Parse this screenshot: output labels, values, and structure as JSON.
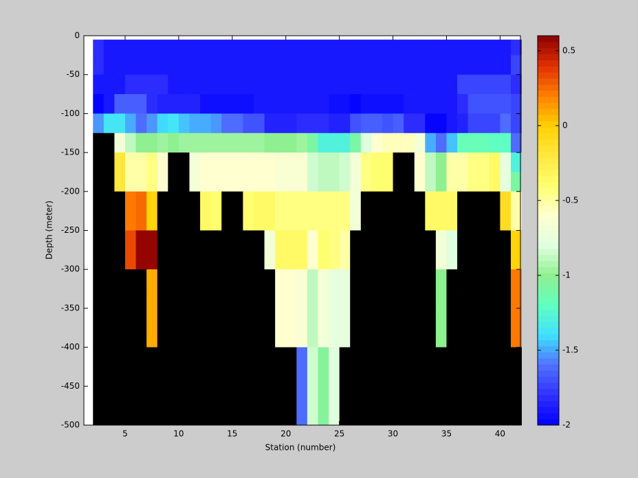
{
  "chart_data": {
    "type": "heatmap",
    "xlabel": "Station (number)",
    "ylabel": "Depth (meter)",
    "x": [
      2,
      3,
      4,
      5,
      6,
      7,
      8,
      9,
      10,
      11,
      12,
      13,
      14,
      15,
      16,
      17,
      18,
      19,
      20,
      21,
      22,
      23,
      24,
      25,
      26,
      27,
      28,
      29,
      30,
      31,
      32,
      33,
      34,
      35,
      36,
      37,
      38,
      39,
      40,
      41,
      42
    ],
    "y": [
      -5,
      -25,
      -50,
      -75,
      -100,
      -125,
      -150,
      -175,
      -200,
      -225,
      -250,
      -275,
      -300,
      -325,
      -350,
      -375,
      -400,
      -425,
      -450,
      -475,
      -500
    ],
    "values": [
      [
        -1.8,
        -1.9,
        -1.9,
        -1.9,
        -1.9,
        -1.9,
        -1.9,
        -1.9,
        -1.9,
        -1.9,
        -1.9,
        -1.9,
        -1.9,
        -1.9,
        -1.9,
        -1.9,
        -1.9,
        -1.9,
        -1.9,
        -1.9,
        -1.9,
        -1.9,
        -1.9,
        -1.9,
        -1.9,
        -1.9,
        -1.9,
        -1.9,
        -1.9,
        -1.9,
        -1.9,
        -1.9,
        -1.9,
        -1.9,
        -1.9,
        -1.9,
        -1.9,
        -1.9,
        -1.9,
        -1.8
      ],
      [
        -1.8,
        -1.9,
        -1.9,
        -1.9,
        -1.9,
        -1.9,
        -1.9,
        -1.9,
        -1.9,
        -1.9,
        -1.9,
        -1.9,
        -1.9,
        -1.9,
        -1.9,
        -1.9,
        -1.9,
        -1.9,
        -1.9,
        -1.9,
        -1.9,
        -1.9,
        -1.9,
        -1.9,
        -1.9,
        -1.9,
        -1.9,
        -1.9,
        -1.9,
        -1.9,
        -1.9,
        -1.9,
        -1.9,
        -1.9,
        -1.9,
        -1.9,
        -1.9,
        -1.9,
        -1.9,
        -1.75
      ],
      [
        -1.9,
        -1.9,
        -1.9,
        -1.8,
        -1.8,
        -1.8,
        -1.8,
        -1.9,
        -1.9,
        -1.9,
        -1.9,
        -1.9,
        -1.9,
        -1.9,
        -1.9,
        -1.9,
        -1.9,
        -1.9,
        -1.9,
        -1.9,
        -1.9,
        -1.9,
        -1.9,
        -1.9,
        -1.9,
        -1.9,
        -1.9,
        -1.9,
        -1.9,
        -1.9,
        -1.9,
        -1.9,
        -1.9,
        -1.9,
        -1.75,
        -1.75,
        -1.75,
        -1.75,
        -1.75,
        -1.8
      ],
      [
        -2,
        -1.9,
        -1.65,
        -1.65,
        -1.65,
        -1.8,
        -1.85,
        -1.85,
        -1.85,
        -1.85,
        -1.95,
        -1.95,
        -1.95,
        -1.95,
        -1.95,
        -1.9,
        -1.9,
        -1.9,
        -1.9,
        -1.9,
        -1.9,
        -1.9,
        -1.95,
        -1.95,
        -2,
        -1.95,
        -1.95,
        -1.95,
        -1.95,
        -1.9,
        -1.9,
        -1.9,
        -1.9,
        -1.9,
        -1.8,
        -1.7,
        -1.7,
        -1.7,
        -1.7,
        -1.75
      ],
      [
        -1.55,
        -1.35,
        -1.35,
        -1.5,
        -1.6,
        -1.55,
        -1.4,
        -1.35,
        -1.45,
        -1.5,
        -1.5,
        -1.55,
        -1.6,
        -1.6,
        -1.7,
        -1.7,
        -1.85,
        -1.85,
        -1.85,
        -1.8,
        -1.8,
        -1.8,
        -1.85,
        -1.85,
        -1.7,
        -1.65,
        -1.65,
        -1.7,
        -1.65,
        -1.8,
        -1.8,
        -2,
        -2,
        -1.9,
        -1.85,
        -1.75,
        -1.75,
        -1.75,
        -1.6,
        -1.75
      ],
      [
        null,
        null,
        -0.7,
        -0.9,
        -1,
        -1,
        -0.95,
        -1,
        -0.95,
        -0.95,
        -0.95,
        -0.95,
        -0.95,
        -0.95,
        -0.95,
        -0.95,
        -1,
        -1,
        -1,
        -0.95,
        -1.1,
        -1.3,
        -1.3,
        -1.3,
        -1.1,
        -0.8,
        -0.6,
        -0.55,
        -0.55,
        -0.55,
        -0.7,
        -1.5,
        -1.6,
        -1.45,
        -1.15,
        -1.15,
        -1.15,
        -1.2,
        -1.2,
        -1.6
      ],
      [
        null,
        null,
        -0.2,
        -0.5,
        -0.5,
        -0.45,
        -0.6,
        null,
        null,
        -0.7,
        -0.6,
        -0.6,
        -0.6,
        -0.6,
        -0.6,
        -0.6,
        -0.6,
        -0.65,
        -0.65,
        -0.65,
        -0.85,
        -0.9,
        -0.9,
        -0.85,
        -0.7,
        -0.45,
        -0.4,
        -0.4,
        null,
        null,
        -0.6,
        -0.9,
        -1,
        -0.5,
        -0.5,
        -0.45,
        -0.45,
        -0.35,
        -0.75,
        -1.3
      ],
      [
        null,
        null,
        -0.2,
        -0.5,
        -0.5,
        -0.45,
        -0.6,
        null,
        null,
        -0.7,
        -0.6,
        -0.6,
        -0.6,
        -0.6,
        -0.6,
        -0.6,
        -0.6,
        -0.65,
        -0.65,
        -0.65,
        -0.85,
        -0.9,
        -0.9,
        -0.85,
        -0.7,
        -0.45,
        -0.4,
        -0.4,
        null,
        null,
        -0.6,
        -0.9,
        -1,
        -0.5,
        -0.5,
        -0.45,
        -0.45,
        -0.35,
        -0.75,
        -1.1
      ],
      [
        null,
        null,
        null,
        0.2,
        0.25,
        -0.05,
        null,
        null,
        null,
        null,
        -0.35,
        -0.4,
        null,
        null,
        -0.4,
        -0.35,
        -0.35,
        -0.45,
        -0.45,
        -0.45,
        -0.45,
        -0.45,
        -0.45,
        -0.45,
        -0.7,
        null,
        null,
        null,
        null,
        null,
        null,
        -0.35,
        -0.35,
        -0.35,
        null,
        null,
        null,
        null,
        -0.1,
        -0.5
      ],
      [
        null,
        null,
        null,
        0.2,
        0.25,
        -0.05,
        null,
        null,
        null,
        null,
        -0.35,
        -0.4,
        null,
        null,
        -0.4,
        -0.35,
        -0.35,
        -0.45,
        -0.45,
        -0.45,
        -0.45,
        -0.45,
        -0.45,
        -0.45,
        -0.7,
        null,
        null,
        null,
        null,
        null,
        null,
        -0.35,
        -0.35,
        -0.35,
        null,
        null,
        null,
        null,
        -0.1,
        -0.5
      ],
      [
        null,
        null,
        null,
        0.35,
        0.6,
        0.6,
        null,
        null,
        null,
        null,
        null,
        null,
        null,
        null,
        null,
        null,
        -0.7,
        -0.35,
        -0.35,
        -0.35,
        -0.6,
        -0.4,
        -0.45,
        -0.5,
        null,
        null,
        null,
        null,
        null,
        null,
        null,
        null,
        -0.7,
        -0.8,
        null,
        null,
        null,
        null,
        null,
        -0.05
      ],
      [
        null,
        null,
        null,
        0.35,
        0.6,
        0.6,
        null,
        null,
        null,
        null,
        null,
        null,
        null,
        null,
        null,
        null,
        -0.7,
        -0.35,
        -0.35,
        -0.35,
        -0.6,
        -0.4,
        -0.45,
        -0.5,
        null,
        null,
        null,
        null,
        null,
        null,
        null,
        null,
        -0.7,
        -0.8,
        null,
        null,
        null,
        null,
        null,
        -0.05
      ],
      [
        null,
        null,
        null,
        null,
        null,
        0.1,
        null,
        null,
        null,
        null,
        null,
        null,
        null,
        null,
        null,
        null,
        null,
        -0.6,
        -0.6,
        -0.65,
        -0.9,
        -0.7,
        -0.75,
        -0.75,
        null,
        null,
        null,
        null,
        null,
        null,
        null,
        null,
        -1,
        null,
        null,
        null,
        null,
        null,
        null,
        0.2
      ],
      [
        null,
        null,
        null,
        null,
        null,
        0.1,
        null,
        null,
        null,
        null,
        null,
        null,
        null,
        null,
        null,
        null,
        null,
        -0.6,
        -0.6,
        -0.65,
        -0.9,
        -0.7,
        -0.75,
        -0.75,
        null,
        null,
        null,
        null,
        null,
        null,
        null,
        null,
        -1,
        null,
        null,
        null,
        null,
        null,
        null,
        0.2
      ],
      [
        null,
        null,
        null,
        null,
        null,
        0.1,
        null,
        null,
        null,
        null,
        null,
        null,
        null,
        null,
        null,
        null,
        null,
        -0.6,
        -0.6,
        -0.65,
        -0.9,
        -0.7,
        -0.75,
        -0.75,
        null,
        null,
        null,
        null,
        null,
        null,
        null,
        null,
        -1,
        null,
        null,
        null,
        null,
        null,
        null,
        0.2
      ],
      [
        null,
        null,
        null,
        null,
        null,
        0.1,
        null,
        null,
        null,
        null,
        null,
        null,
        null,
        null,
        null,
        null,
        null,
        -0.6,
        -0.6,
        -0.65,
        -0.9,
        -0.7,
        -0.75,
        -0.75,
        null,
        null,
        null,
        null,
        null,
        null,
        null,
        null,
        -1,
        null,
        null,
        null,
        null,
        null,
        null,
        0.2
      ],
      [
        null,
        null,
        null,
        null,
        null,
        null,
        null,
        null,
        null,
        null,
        null,
        null,
        null,
        null,
        null,
        null,
        null,
        null,
        null,
        -1.6,
        -0.85,
        -1.05,
        -0.8,
        null,
        null,
        null,
        null,
        null,
        null,
        null,
        null,
        null,
        null,
        null,
        null,
        null,
        null,
        null,
        null,
        null
      ],
      [
        null,
        null,
        null,
        null,
        null,
        null,
        null,
        null,
        null,
        null,
        null,
        null,
        null,
        null,
        null,
        null,
        null,
        null,
        null,
        -1.6,
        -0.85,
        -1.05,
        -0.8,
        null,
        null,
        null,
        null,
        null,
        null,
        null,
        null,
        null,
        null,
        null,
        null,
        null,
        null,
        null,
        null,
        null
      ],
      [
        null,
        null,
        null,
        null,
        null,
        null,
        null,
        null,
        null,
        null,
        null,
        null,
        null,
        null,
        null,
        null,
        null,
        null,
        null,
        -1.6,
        -0.85,
        -1.05,
        -0.8,
        null,
        null,
        null,
        null,
        null,
        null,
        null,
        null,
        null,
        null,
        null,
        null,
        null,
        null,
        null,
        null,
        null
      ],
      [
        null,
        null,
        null,
        null,
        null,
        null,
        null,
        null,
        null,
        null,
        null,
        null,
        null,
        null,
        null,
        null,
        null,
        null,
        null,
        -1.6,
        -0.85,
        -1.05,
        -0.8,
        null,
        null,
        null,
        null,
        null,
        null,
        null,
        null,
        null,
        null,
        null,
        null,
        null,
        null,
        null,
        null,
        null
      ]
    ],
    "xlim": [
      1.15,
      41.9
    ],
    "xticks": [
      5,
      10,
      15,
      20,
      25,
      30,
      35,
      40
    ],
    "ylim": [
      -500,
      0
    ],
    "yticks": [
      -500,
      -450,
      -400,
      -350,
      -300,
      -250,
      -200,
      -150,
      -100,
      -50,
      0
    ],
    "clim": [
      -2,
      0.6
    ],
    "cticks": [
      -2,
      -1.5,
      -1,
      -0.5,
      0,
      0.5
    ],
    "colormap": [
      "#0000ff",
      "#3030ff",
      "#5070ff",
      "#40e0ff",
      "#60ffc0",
      "#90f090",
      "#e0ffe0",
      "#ffffd0",
      "#ffff70",
      "#ffe840",
      "#ffd000",
      "#ff8000",
      "#e03000",
      "#8b0000"
    ],
    "colormap_levels": 64,
    "nan_color": "#000000"
  }
}
